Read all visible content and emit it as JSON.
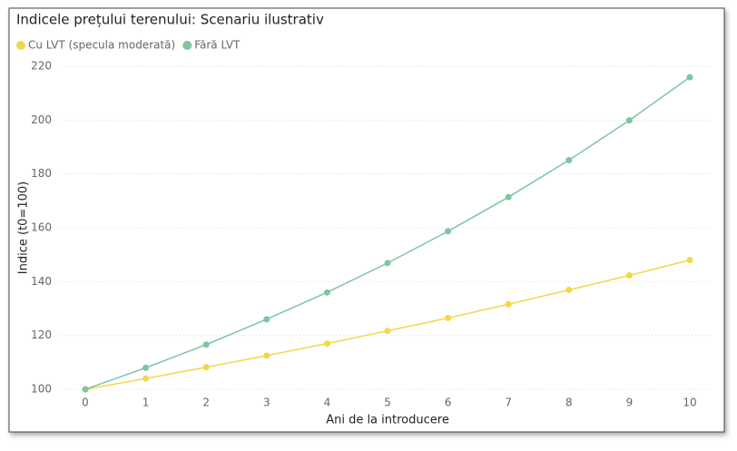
{
  "chart_data": {
    "type": "line",
    "title": "Indicele prețului terenului: Scenariu ilustrativ",
    "x_label": "Ani de la introducere",
    "y_label": "Indice (t0=100)",
    "x": [
      0,
      1,
      2,
      3,
      4,
      5,
      6,
      7,
      8,
      9,
      10
    ],
    "series": [
      {
        "name": "Cu LVT (specula moderată)",
        "color": "#f2d74c",
        "values": [
          100,
          104,
          108.2,
          112.5,
          117,
          121.7,
          126.5,
          131.6,
          136.9,
          142.3,
          148
        ]
      },
      {
        "name": "Fără LVT",
        "color": "#7cc6a0",
        "values": [
          100,
          108,
          116.6,
          126,
          136,
          146.9,
          158.7,
          171.4,
          185.1,
          199.9,
          215.9
        ]
      }
    ],
    "xlim": [
      0,
      10
    ],
    "xticks": [
      0,
      1,
      2,
      3,
      4,
      5,
      6,
      7,
      8,
      9,
      10
    ],
    "ylim": [
      100,
      220
    ],
    "yticks": [
      100,
      120,
      140,
      160,
      180,
      200,
      220
    ],
    "grid": true
  }
}
